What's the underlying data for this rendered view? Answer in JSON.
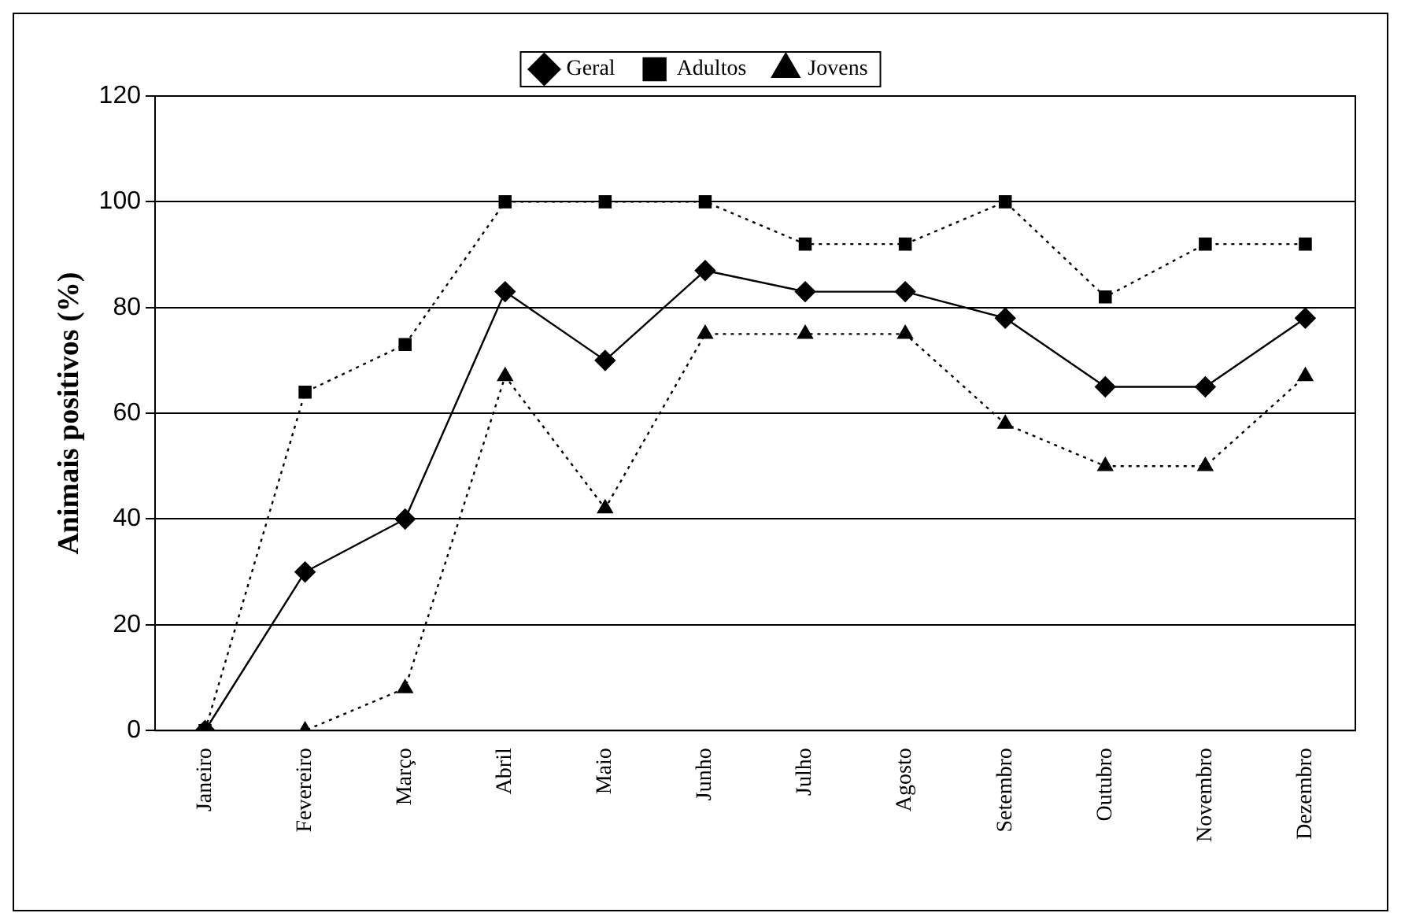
{
  "chart_data": {
    "type": "line",
    "ylabel": "Animais positivos (%)",
    "categories": [
      "Janeiro",
      "Fevereiro",
      "Março",
      "Abril",
      "Maio",
      "Junho",
      "Julho",
      "Agosto",
      "Setembro",
      "Outubro",
      "Novembro",
      "Dezembro"
    ],
    "series": [
      {
        "name": "Geral",
        "color": "#000000",
        "marker": "diamond",
        "line_style": "solid",
        "values": [
          0,
          30,
          40,
          83,
          70,
          87,
          83,
          83,
          78,
          65,
          65,
          78
        ]
      },
      {
        "name": "Adultos",
        "color": "#000000",
        "marker": "square",
        "line_style": "dotted",
        "values": [
          0,
          64,
          73,
          100,
          100,
          100,
          92,
          92,
          100,
          82,
          92,
          92
        ]
      },
      {
        "name": "Jovens",
        "color": "#000000",
        "marker": "triangle",
        "line_style": "dotted",
        "values": [
          0,
          0,
          8,
          67,
          42,
          75,
          75,
          75,
          58,
          50,
          50,
          67
        ]
      }
    ],
    "ylim": [
      0,
      120
    ],
    "yticks": [
      0,
      20,
      40,
      60,
      80,
      100,
      120
    ],
    "grid": "y",
    "legend": "top"
  }
}
